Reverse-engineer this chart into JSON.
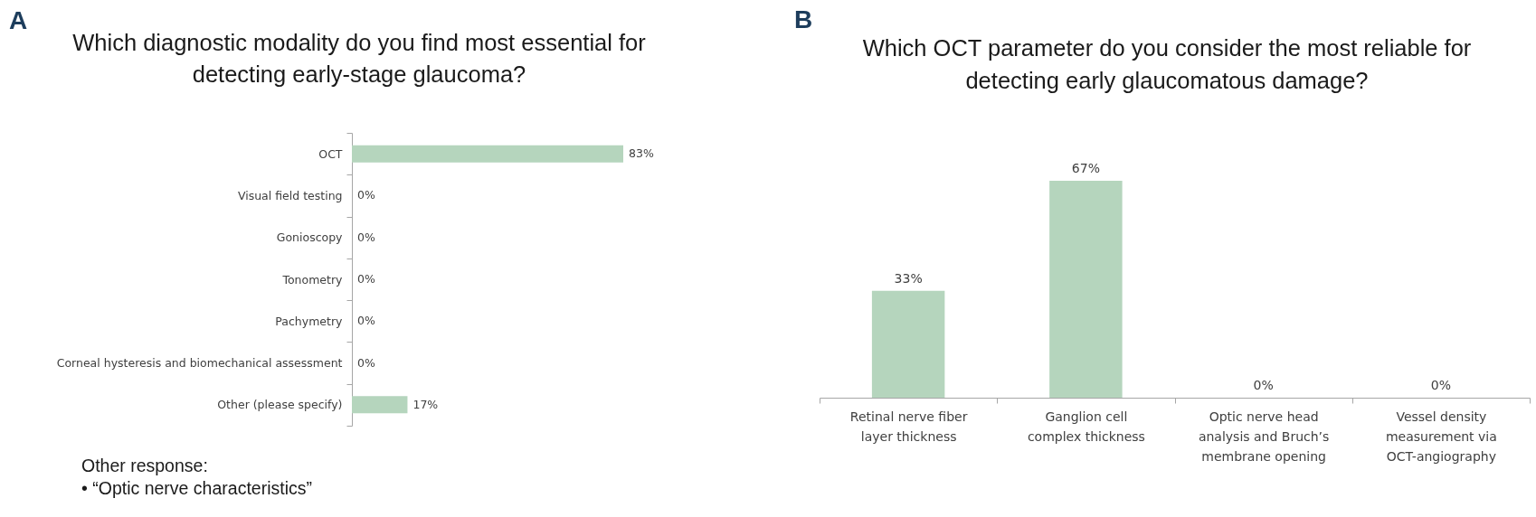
{
  "chart_data": [
    {
      "type": "bar",
      "orientation": "horizontal",
      "title": "Which diagnostic modality do you find most essential for detecting early-stage glaucoma?",
      "categories": [
        "OCT",
        "Visual field testing",
        "Gonioscopy",
        "Tonometry",
        "Pachymetry",
        "Corneal hysteresis and biomechanical assessment",
        "Other (please specify)"
      ],
      "values": [
        83,
        0,
        0,
        0,
        0,
        0,
        17
      ],
      "value_labels": [
        "83%",
        "0%",
        "0%",
        "0%",
        "0%",
        "0%",
        "17%"
      ],
      "color": "#b5d5bd",
      "annotations": [
        "A",
        "Other response:",
        "• “Optic nerve characteristics”"
      ]
    },
    {
      "type": "bar",
      "title": "Which OCT parameter do you consider the most reliable for detecting early glaucomatous damage?",
      "categories": [
        "Retinal nerve fiber layer thickness",
        "Ganglion cell complex thickness",
        "Optic nerve head analysis and Bruch’s membrane opening",
        "Vessel density measurement via OCT-angiography"
      ],
      "values": [
        33,
        67,
        0,
        0
      ],
      "value_labels": [
        "33%",
        "67%",
        "0%",
        "0%"
      ],
      "color": "#b5d5bd",
      "annotations": [
        "B"
      ]
    }
  ]
}
